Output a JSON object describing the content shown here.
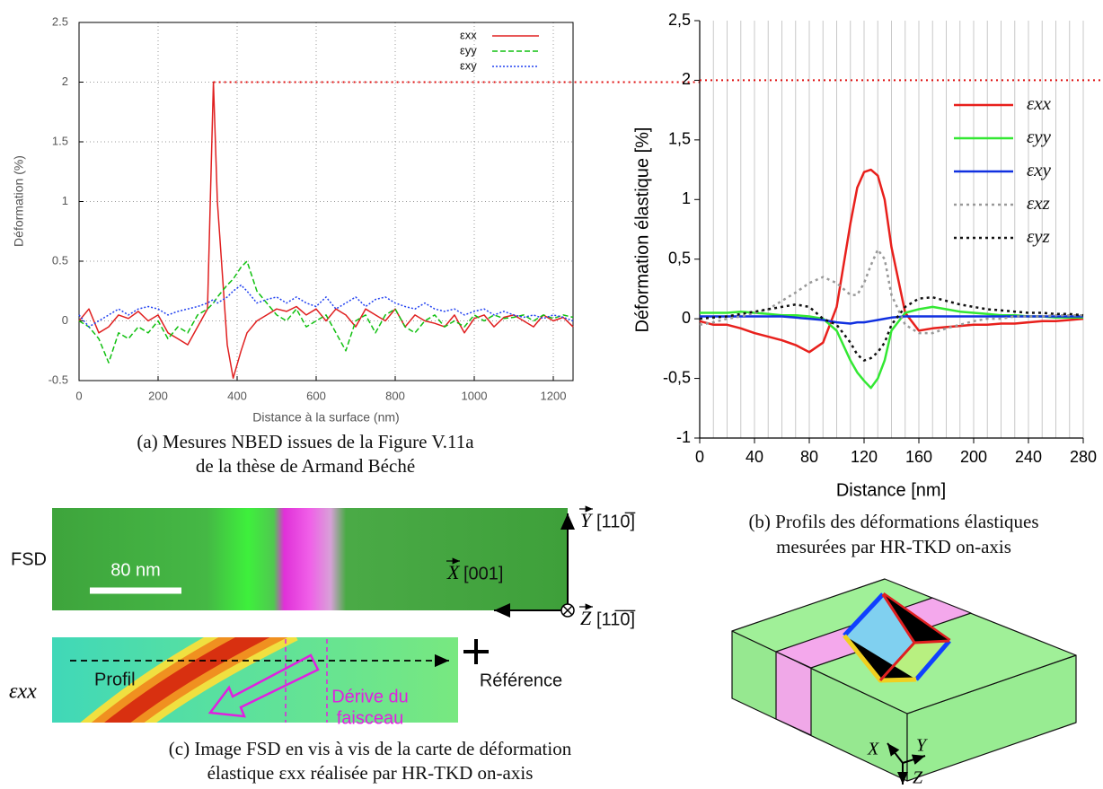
{
  "chart_data": [
    {
      "type": "line",
      "xlabel": "Distance à la surface (nm)",
      "ylabel": "Déformation (%)",
      "x": [
        0,
        25,
        50,
        75,
        100,
        125,
        150,
        175,
        200,
        225,
        250,
        275,
        300,
        325,
        340,
        350,
        375,
        390,
        410,
        425,
        450,
        475,
        500,
        525,
        550,
        575,
        600,
        625,
        650,
        675,
        700,
        725,
        750,
        775,
        800,
        825,
        850,
        875,
        900,
        925,
        950,
        975,
        1000,
        1025,
        1050,
        1075,
        1100,
        1125,
        1150,
        1175,
        1200,
        1225,
        1250
      ],
      "xlim": [
        0,
        1250
      ],
      "xticks": [
        0,
        200,
        400,
        600,
        800,
        1000,
        1200
      ],
      "ylim": [
        -0.5,
        2.5
      ],
      "yticks": [
        -0.5,
        0,
        0.5,
        1,
        1.5,
        2,
        2.5
      ],
      "grid": "both",
      "hline": 2,
      "hline_color": "#e01010",
      "legend": "upper right",
      "series": [
        {
          "name": "εxx",
          "color": "#e02020",
          "style": "solid",
          "values": [
            0,
            0.1,
            -0.1,
            -0.05,
            0.05,
            0.02,
            0.08,
            0,
            0.05,
            -0.1,
            -0.15,
            -0.2,
            -0.05,
            0.1,
            2.0,
            1.0,
            -0.2,
            -0.48,
            -0.25,
            -0.1,
            0,
            0.05,
            0.1,
            0.08,
            0.12,
            0.05,
            0.1,
            0,
            0.1,
            0.05,
            -0.05,
            0.1,
            0.05,
            0,
            0.1,
            -0.05,
            0.05,
            0,
            -0.02,
            -0.05,
            0.05,
            -0.1,
            0.02,
            0.05,
            -0.05,
            0.03,
            0.05,
            0,
            -0.05,
            0.05,
            0,
            0.03,
            -0.05
          ]
        },
        {
          "name": "εyy",
          "color": "#10c010",
          "style": "dashed",
          "values": [
            0,
            -0.05,
            -0.15,
            -0.35,
            -0.1,
            -0.15,
            -0.05,
            -0.1,
            0,
            -0.15,
            -0.05,
            -0.1,
            0.05,
            0.1,
            0.15,
            0.2,
            0.3,
            0.35,
            0.45,
            0.5,
            0.25,
            0.15,
            0.05,
            0,
            0.1,
            -0.05,
            0,
            0.05,
            -0.1,
            -0.25,
            0,
            0.05,
            -0.1,
            0.05,
            0.1,
            -0.05,
            -0.1,
            0,
            0.05,
            -0.05,
            0,
            -0.05,
            0.05,
            0,
            0.05,
            0.02,
            0.03,
            0.05,
            0,
            0.05,
            0.02,
            0.05,
            0.03
          ]
        },
        {
          "name": "εxy",
          "color": "#2040f0",
          "style": "dotted",
          "values": [
            0.05,
            -0.05,
            0,
            0.05,
            0.1,
            0.05,
            0.1,
            0.12,
            0.1,
            0.05,
            0.08,
            0.1,
            0.12,
            0.15,
            0.18,
            0.15,
            0.2,
            0.25,
            0.3,
            0.25,
            0.15,
            0.18,
            0.2,
            0.15,
            0.2,
            0.15,
            0.12,
            0.2,
            0.1,
            0.15,
            0.2,
            0.12,
            0.18,
            0.2,
            0.15,
            0.12,
            0.1,
            0.15,
            0.1,
            0.08,
            0.1,
            0.05,
            0.08,
            0.1,
            0.05,
            0.08,
            0.05,
            0.03,
            0.05,
            0.02,
            0.05,
            0.03,
            0
          ]
        }
      ]
    },
    {
      "type": "line",
      "xlabel": "Distance [nm]",
      "ylabel": "Déformation élastique [%]",
      "x": [
        0,
        10,
        20,
        30,
        40,
        50,
        60,
        70,
        80,
        90,
        100,
        110,
        115,
        120,
        125,
        130,
        135,
        140,
        150,
        160,
        170,
        180,
        190,
        200,
        210,
        220,
        230,
        240,
        250,
        260,
        270,
        280
      ],
      "xlim": [
        0,
        280
      ],
      "xticks": [
        0,
        40,
        80,
        120,
        160,
        200,
        240,
        280
      ],
      "ylim": [
        -1,
        2.5
      ],
      "yticks": [
        -1,
        {
          "value": -0.5,
          "label": "-0,5"
        },
        0,
        {
          "value": 0.5,
          "label": "0,5"
        },
        1,
        {
          "value": 1.5,
          "label": "1,5"
        },
        2,
        {
          "value": 2.5,
          "label": "2,5"
        }
      ],
      "grid": "x",
      "hline": 2,
      "hline_color": "#e01010",
      "legend": "upper right",
      "series": [
        {
          "name": "εxx",
          "color": "#e8201c",
          "style": "solid",
          "values": [
            -0.02,
            -0.05,
            -0.05,
            -0.08,
            -0.12,
            -0.15,
            -0.18,
            -0.22,
            -0.28,
            -0.2,
            0.1,
            0.8,
            1.1,
            1.23,
            1.25,
            1.2,
            1.0,
            0.6,
            0.05,
            -0.1,
            -0.08,
            -0.07,
            -0.06,
            -0.05,
            -0.05,
            -0.04,
            -0.04,
            -0.03,
            -0.02,
            -0.02,
            -0.01,
            0
          ]
        },
        {
          "name": "εyy",
          "color": "#33e833",
          "style": "solid",
          "values": [
            0.05,
            0.05,
            0.05,
            0.06,
            0.05,
            0.04,
            0.03,
            0.03,
            0.02,
            0,
            -0.1,
            -0.35,
            -0.45,
            -0.52,
            -0.58,
            -0.5,
            -0.35,
            -0.1,
            0.05,
            0.08,
            0.1,
            0.08,
            0.06,
            0.05,
            0.04,
            0.03,
            0.03,
            0.02,
            0.02,
            0.01,
            0.01,
            0.01
          ]
        },
        {
          "name": "εxy",
          "color": "#1030e0",
          "style": "solid",
          "values": [
            0.02,
            0.02,
            0.02,
            0.02,
            0.02,
            0.02,
            0.02,
            0.01,
            0,
            -0.01,
            -0.03,
            -0.04,
            -0.03,
            -0.03,
            -0.02,
            -0.01,
            0,
            0.01,
            0.02,
            0.02,
            0.02,
            0.02,
            0.02,
            0.02,
            0.02,
            0.02,
            0.02,
            0.02,
            0.02,
            0.02,
            0.02,
            0.02
          ]
        },
        {
          "name": "εxz",
          "color": "#999999",
          "style": "dotted",
          "values": [
            -0.05,
            -0.03,
            0,
            0.02,
            0.05,
            0.08,
            0.15,
            0.22,
            0.3,
            0.35,
            0.3,
            0.2,
            0.2,
            0.3,
            0.45,
            0.58,
            0.5,
            0.2,
            -0.05,
            -0.12,
            -0.12,
            -0.08,
            -0.05,
            -0.02,
            0,
            0,
            0.02,
            0.02,
            0.02,
            0.03,
            0.03,
            0.03
          ]
        },
        {
          "name": "εyz",
          "color": "#111111",
          "style": "dotted",
          "values": [
            0,
            0.01,
            0.02,
            0.04,
            0.06,
            0.08,
            0.1,
            0.12,
            0.1,
            0,
            -0.05,
            -0.2,
            -0.3,
            -0.35,
            -0.33,
            -0.28,
            -0.2,
            -0.05,
            0.1,
            0.17,
            0.18,
            0.15,
            0.12,
            0.1,
            0.08,
            0.07,
            0.06,
            0.05,
            0.05,
            0.04,
            0.04,
            0.03
          ]
        }
      ]
    }
  ],
  "captions": {
    "a": [
      "(a) Mesures NBED issues de la Figure V.11a",
      "de la thèse de Armand Béché"
    ],
    "b": [
      "(b) Profils des déformations élastiques",
      "mesurées par HR-TKD on-axis"
    ],
    "c": [
      "(c) Image FSD en vis à vis de la carte de déformation",
      "élastique εxx réalisée par HR-TKD on-axis"
    ]
  },
  "panel_c": {
    "fsd_label": "FSD",
    "scale_bar": "80 nm",
    "y_axis": "Y",
    "y_dir": "[110̅]",
    "x_axis": "X",
    "x_dir": "[001]",
    "z_axis": "Z",
    "z_dir": "[11̅0̅]",
    "map_label": "εxx",
    "profile": "Profil",
    "reference": "Référence",
    "drift": [
      "Dérive du",
      "faisceau"
    ]
  },
  "panel_3d": {
    "axes": [
      "X",
      "Y",
      "Z"
    ]
  }
}
